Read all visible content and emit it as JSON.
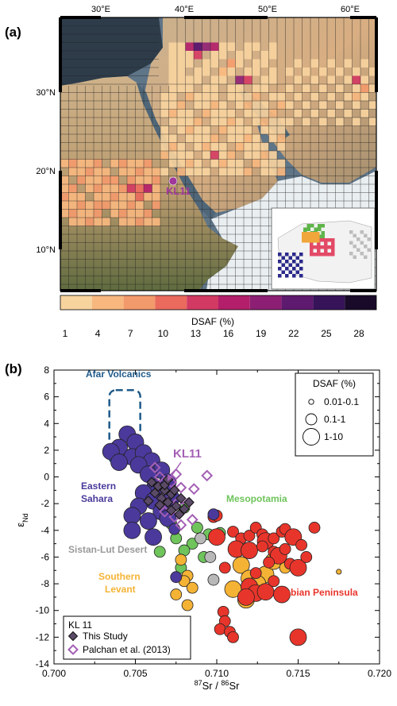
{
  "panel_a": {
    "label": "(a)",
    "lon_ticks": [
      "30°E",
      "40°E",
      "50°E",
      "60°E"
    ],
    "lat_ticks": [
      "30°N",
      "20°N",
      "10°N"
    ],
    "site_label": "KL11",
    "colorbar": {
      "title": "DSAF (%)",
      "ticks": [
        "1",
        "4",
        "7",
        "10",
        "13",
        "16",
        "19",
        "22",
        "25",
        "28"
      ],
      "colors": [
        "#f7d39e",
        "#f7b77f",
        "#f39a6c",
        "#ea6a5d",
        "#d23a63",
        "#b31f6a",
        "#8c1f73",
        "#5e1a6f",
        "#37145a",
        "#1a0a2a"
      ]
    }
  },
  "chart_data": {
    "type": "scatter",
    "panel_label": "(b)",
    "xlabel_parts": {
      "sup1": "87",
      "mid": "Sr / ",
      "sup2": "86",
      "end": "Sr"
    },
    "ylabel_parts": {
      "main": "ε",
      "sub": "Nd"
    },
    "xlim": [
      0.7,
      0.72
    ],
    "ylim": [
      -14,
      8
    ],
    "xticks": [
      "0.700",
      "0.705",
      "0.710",
      "0.715",
      "0.720"
    ],
    "yticks": [
      "-14",
      "-12",
      "-10",
      "-8",
      "-6",
      "-4",
      "-2",
      "0",
      "2",
      "4",
      "6",
      "8"
    ],
    "size_legend": {
      "title": "DSAF (%)",
      "entries": [
        "0.01-0.1",
        "0.1-1",
        "1-10"
      ]
    },
    "region_labels": {
      "afar": "Afar Volcanics",
      "eastern_sahara": "Eastern Sahara",
      "mesopotamia": "Mesopotamia",
      "sistan": "Sistan-Lut Desert",
      "levant": "Southern Levant",
      "arabian": "Arabian Peninsula",
      "kl11": "KL11"
    },
    "kl11_legend": {
      "title": "KL 11",
      "this_study": "This Study",
      "palchan": "Palchan et al. (2013)"
    },
    "colors": {
      "eastern_sahara": "#4b3a9c",
      "mesopotamia": "#6fc45c",
      "sistan": "#b8b8b8",
      "levant": "#f5b335",
      "arabian": "#e8352b",
      "kl11": "#a460b5",
      "afar": "#1f5a8a"
    },
    "series": [
      {
        "group": "eastern_sahara",
        "points": [
          [
            0.7045,
            3.2,
            2
          ],
          [
            0.705,
            2.6,
            2
          ],
          [
            0.704,
            2.2,
            2
          ],
          [
            0.7035,
            1.9,
            2
          ],
          [
            0.7048,
            1.5,
            2
          ],
          [
            0.7055,
            1.8,
            2
          ],
          [
            0.706,
            1.2,
            2
          ],
          [
            0.7052,
            0.9,
            2
          ],
          [
            0.704,
            1.1,
            2
          ],
          [
            0.7066,
            0.5,
            2
          ],
          [
            0.7058,
            0.2,
            2
          ],
          [
            0.707,
            -0.4,
            2
          ],
          [
            0.7062,
            -0.8,
            2
          ],
          [
            0.7055,
            -1.2,
            2
          ],
          [
            0.7072,
            -1.6,
            2
          ],
          [
            0.7061,
            -1.8,
            2
          ],
          [
            0.7052,
            -2.2,
            2
          ],
          [
            0.7066,
            -2.6,
            2
          ],
          [
            0.7048,
            -2.9,
            2
          ],
          [
            0.7058,
            -3.3,
            2
          ],
          [
            0.707,
            -3.1,
            2
          ],
          [
            0.7048,
            -4.0,
            2
          ],
          [
            0.7061,
            -4.5,
            2
          ],
          [
            0.7074,
            -3.9,
            1
          ],
          [
            0.7075,
            -7.5,
            1
          ],
          [
            0.7098,
            -2.8,
            1
          ]
        ]
      },
      {
        "group": "mesopotamia",
        "points": [
          [
            0.708,
            -2.3,
            1
          ],
          [
            0.7072,
            -3.5,
            1
          ],
          [
            0.7088,
            -3.8,
            1
          ],
          [
            0.7075,
            -4.6,
            1
          ],
          [
            0.7095,
            -4.3,
            1
          ],
          [
            0.7102,
            -4.2,
            1
          ],
          [
            0.7085,
            -5.0,
            1
          ],
          [
            0.7065,
            -5.6,
            1
          ],
          [
            0.708,
            -5.5,
            1
          ],
          [
            0.7092,
            -6.0,
            1
          ],
          [
            0.7078,
            -6.8,
            1
          ]
        ]
      },
      {
        "group": "sistan",
        "points": [
          [
            0.709,
            -4.6,
            1
          ],
          [
            0.7096,
            -6.0,
            1
          ],
          [
            0.7098,
            -7.7,
            1
          ]
        ]
      },
      {
        "group": "levant",
        "points": [
          [
            0.7078,
            -6.2,
            1
          ],
          [
            0.7082,
            -7.4,
            1
          ],
          [
            0.708,
            -7.8,
            1
          ],
          [
            0.7085,
            -8.3,
            1
          ],
          [
            0.7075,
            -8.8,
            1
          ],
          [
            0.7082,
            -9.6,
            1
          ],
          [
            0.7115,
            -6.6,
            2
          ],
          [
            0.712,
            -7.6,
            2
          ],
          [
            0.713,
            -7.3,
            2
          ],
          [
            0.7125,
            -8.0,
            2
          ],
          [
            0.711,
            -8.4,
            2
          ],
          [
            0.7118,
            -9.2,
            2
          ],
          [
            0.7135,
            -6.3,
            2
          ],
          [
            0.7142,
            -6.8,
            1
          ],
          [
            0.7175,
            -7.1,
            0
          ]
        ]
      },
      {
        "group": "arabian",
        "points": [
          [
            0.7098,
            -3.0,
            1
          ],
          [
            0.71,
            -4.5,
            2
          ],
          [
            0.711,
            -4.1,
            1
          ],
          [
            0.7115,
            -4.6,
            1
          ],
          [
            0.712,
            -4.4,
            1
          ],
          [
            0.7124,
            -3.8,
            1
          ],
          [
            0.7128,
            -4.3,
            1
          ],
          [
            0.713,
            -4.8,
            2
          ],
          [
            0.7135,
            -4.6,
            1
          ],
          [
            0.714,
            -4.1,
            1
          ],
          [
            0.7142,
            -3.9,
            1
          ],
          [
            0.7147,
            -4.5,
            2
          ],
          [
            0.7152,
            -5.1,
            1
          ],
          [
            0.716,
            -3.8,
            1
          ],
          [
            0.7112,
            -5.4,
            2
          ],
          [
            0.712,
            -5.5,
            2
          ],
          [
            0.7128,
            -5.2,
            1
          ],
          [
            0.7135,
            -5.6,
            1
          ],
          [
            0.7138,
            -5.9,
            2
          ],
          [
            0.7142,
            -5.4,
            1
          ],
          [
            0.7145,
            -6.5,
            1
          ],
          [
            0.715,
            -6.8,
            2
          ],
          [
            0.7155,
            -6.0,
            1
          ],
          [
            0.7105,
            -6.8,
            1
          ],
          [
            0.7132,
            -6.4,
            1
          ],
          [
            0.7124,
            -7.2,
            1
          ],
          [
            0.712,
            -8.2,
            2
          ],
          [
            0.7124,
            -8.7,
            2
          ],
          [
            0.713,
            -8.6,
            2
          ],
          [
            0.714,
            -8.8,
            2
          ],
          [
            0.7135,
            -7.8,
            1
          ],
          [
            0.7118,
            -9.0,
            2
          ],
          [
            0.7104,
            -10.1,
            1
          ],
          [
            0.7105,
            -10.8,
            1
          ],
          [
            0.7102,
            -11.4,
            1
          ],
          [
            0.7108,
            -11.6,
            1
          ],
          [
            0.711,
            -12.0,
            1
          ],
          [
            0.715,
            -12.0,
            2
          ],
          [
            0.71,
            -2.9,
            1
          ]
        ]
      },
      {
        "group": "kl11_this_study",
        "points": [
          [
            0.706,
            -0.4,
            1
          ],
          [
            0.7064,
            -0.7,
            1
          ],
          [
            0.7068,
            -1.0,
            1
          ],
          [
            0.7072,
            -1.3,
            1
          ],
          [
            0.7066,
            -1.6,
            1
          ],
          [
            0.707,
            -1.9,
            1
          ],
          [
            0.7075,
            -2.2,
            1
          ],
          [
            0.7078,
            -1.6,
            1
          ],
          [
            0.7074,
            -1.0,
            1
          ],
          [
            0.7062,
            -1.2,
            1
          ],
          [
            0.7068,
            -0.6,
            1
          ],
          [
            0.708,
            -2.4,
            1
          ],
          [
            0.7077,
            -2.8,
            1
          ],
          [
            0.7072,
            -2.5,
            1
          ],
          [
            0.7083,
            -1.9,
            1
          ],
          [
            0.7058,
            -1.8,
            1
          ],
          [
            0.7065,
            -2.1,
            1
          ],
          [
            0.707,
            -0.2,
            1
          ]
        ]
      },
      {
        "group": "kl11_palchan",
        "points": [
          [
            0.7062,
            0.7,
            1
          ],
          [
            0.7065,
            0.0,
            1
          ],
          [
            0.7072,
            -0.4,
            1
          ],
          [
            0.7078,
            -0.8,
            1
          ],
          [
            0.7069,
            -1.3,
            1
          ],
          [
            0.7076,
            -1.9,
            1
          ],
          [
            0.7082,
            -2.0,
            1
          ],
          [
            0.7086,
            -0.9,
            1
          ],
          [
            0.7094,
            0.1,
            1
          ],
          [
            0.7075,
            0.2,
            1
          ],
          [
            0.7068,
            -2.6,
            1
          ],
          [
            0.7074,
            -3.0,
            1
          ],
          [
            0.7078,
            -3.6,
            1
          ],
          [
            0.7085,
            -3.2,
            1
          ],
          [
            0.7066,
            -2.0,
            1
          ]
        ]
      }
    ],
    "afar_box": {
      "x": [
        0.7034,
        0.7053
      ],
      "y": [
        1.0,
        6.5
      ]
    }
  }
}
